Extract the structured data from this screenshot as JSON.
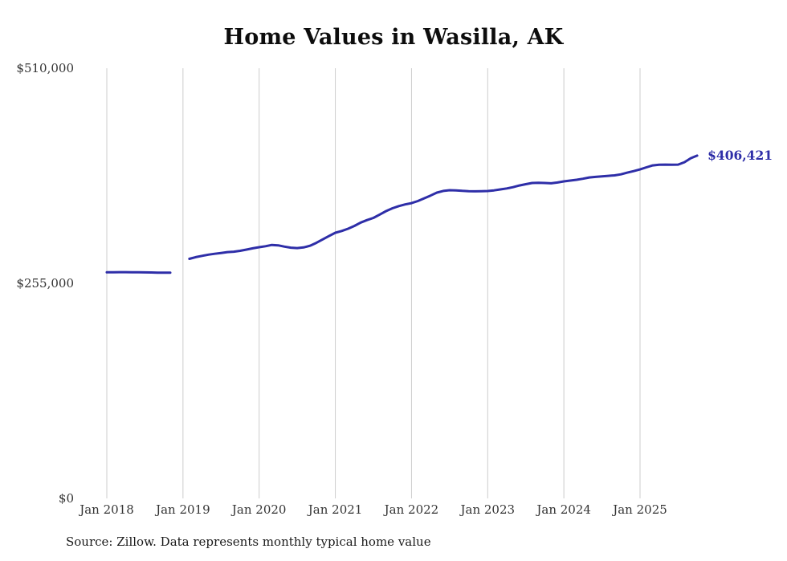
{
  "chart_data": {
    "type": "line",
    "title": "Home Values in Wasilla, AK",
    "source": "Source: Zillow. Data represents monthly typical home value",
    "end_label": "$406,421",
    "final_value": 406421,
    "line_color": "#2e2ea8",
    "gridline_color": "#cccccc",
    "axis_label_color": "#333333",
    "grid": "vertical-only",
    "legend": "none",
    "y_axis": {
      "min": 0,
      "max": 510000,
      "tick_values": [
        0,
        255000,
        510000
      ],
      "tick_labels": [
        "$0",
        "$255,000",
        "$510,000"
      ]
    },
    "x_axis": {
      "tick_labels": [
        "Jan 2018",
        "Jan 2019",
        "Jan 2020",
        "Jan 2021",
        "Jan 2022",
        "Jan 2023",
        "Jan 2024",
        "Jan 2025"
      ],
      "tick_month_offsets": [
        0,
        12,
        24,
        36,
        48,
        60,
        72,
        84
      ]
    },
    "series": [
      {
        "name": "Typical home value",
        "months": [
          "2018-01",
          "2018-02",
          "2018-03",
          "2018-04",
          "2018-05",
          "2018-06",
          "2018-07",
          "2018-08",
          "2018-09",
          "2018-10",
          "2018-11",
          "2018-12",
          "2019-01",
          "2019-02",
          "2019-03",
          "2019-04",
          "2019-05",
          "2019-06",
          "2019-07",
          "2019-08",
          "2019-09",
          "2019-10",
          "2019-11",
          "2019-12",
          "2020-01",
          "2020-02",
          "2020-03",
          "2020-04",
          "2020-05",
          "2020-06",
          "2020-07",
          "2020-08",
          "2020-09",
          "2020-10",
          "2020-11",
          "2020-12",
          "2021-01",
          "2021-02",
          "2021-03",
          "2021-04",
          "2021-05",
          "2021-06",
          "2021-07",
          "2021-08",
          "2021-09",
          "2021-10",
          "2021-11",
          "2021-12",
          "2022-01",
          "2022-02",
          "2022-03",
          "2022-04",
          "2022-05",
          "2022-06",
          "2022-07",
          "2022-08",
          "2022-09",
          "2022-10",
          "2022-11",
          "2022-12",
          "2023-01",
          "2023-02",
          "2023-03",
          "2023-04",
          "2023-05",
          "2023-06",
          "2023-07",
          "2023-08",
          "2023-09",
          "2023-10",
          "2023-11",
          "2023-12",
          "2024-01",
          "2024-02",
          "2024-03",
          "2024-04",
          "2024-05",
          "2024-06",
          "2024-07",
          "2024-08",
          "2024-09",
          "2024-10",
          "2024-11",
          "2024-12",
          "2025-01",
          "2025-02",
          "2025-03",
          "2025-04",
          "2025-05",
          "2025-06",
          "2025-07",
          "2025-08",
          "2025-09",
          "2025-10"
        ],
        "values": [
          268000,
          268100,
          268200,
          268200,
          268100,
          268000,
          267900,
          267800,
          267700,
          267600,
          267600,
          null,
          null,
          284000,
          286000,
          287500,
          289000,
          290000,
          291000,
          292000,
          292500,
          293500,
          295000,
          296500,
          297800,
          299000,
          300500,
          300000,
          298500,
          297200,
          296800,
          297500,
          299500,
          303000,
          307000,
          311000,
          314900,
          317000,
          319700,
          323000,
          327000,
          330000,
          332500,
          336500,
          340600,
          344000,
          346500,
          348500,
          350100,
          352500,
          355800,
          359000,
          362500,
          364500,
          365400,
          365200,
          364600,
          364200,
          364000,
          364200,
          364400,
          365200,
          366300,
          367500,
          369000,
          371000,
          372500,
          373900,
          374200,
          373900,
          373600,
          374500,
          375800,
          376800,
          377700,
          379000,
          380500,
          381200,
          381800,
          382400,
          383000,
          384200,
          386200,
          388000,
          390000,
          392500,
          394800,
          395500,
          395700,
          395500,
          395700,
          398600,
          403300,
          406421
        ]
      }
    ]
  }
}
